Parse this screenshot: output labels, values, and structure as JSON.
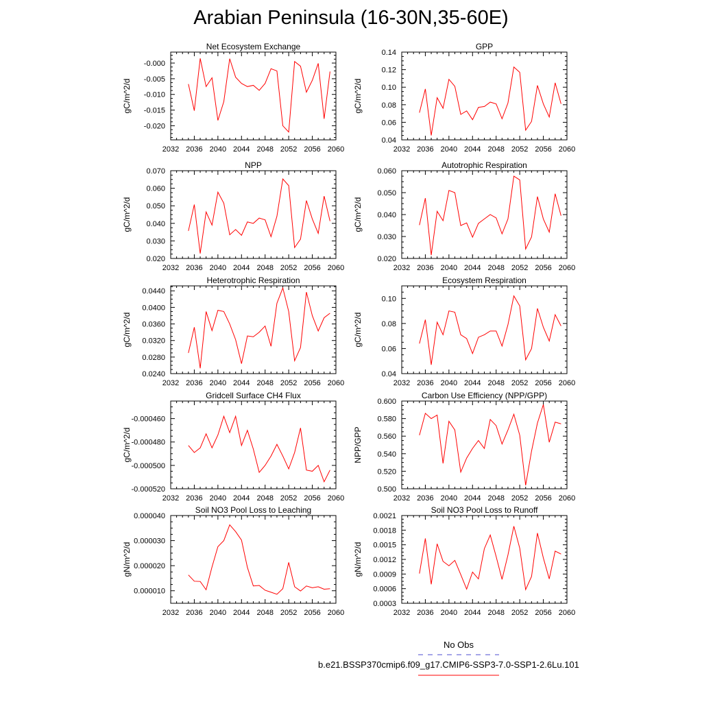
{
  "title": "Arabian Peninsula (16-30N,35-60E)",
  "colors": {
    "series": "#ff0000",
    "obs": "#4b4bd2",
    "axis": "#000000"
  },
  "legend": {
    "obs_label": "No Obs",
    "case_label": "b.e21.BSSP370cmip6.f09_g17.CMIP6-SSP3-7.0-SSP1-2.6Lu.101"
  },
  "chart_data": [
    {
      "type": "line",
      "title": "Net Ecosystem Exchange",
      "ylabel": "gC/m^2/d",
      "xlim": [
        2032,
        2060
      ],
      "xticks": [
        2032,
        2036,
        2040,
        2044,
        2048,
        2052,
        2056,
        2060
      ],
      "xtick_labels": [
        "2032",
        "2036",
        "2040",
        "2044",
        "2048",
        "2052",
        "2056",
        "2060"
      ],
      "ylim": [
        -0.0245,
        0.0035
      ],
      "yticks": [
        -0.02,
        -0.015,
        -0.01,
        -0.005,
        0
      ],
      "ytick_labels": [
        "-0.020",
        "-0.015",
        "-0.010",
        "-0.005",
        "-0.000"
      ],
      "x": [
        2035,
        2036,
        2037,
        2038,
        2039,
        2040,
        2041,
        2042,
        2043,
        2044,
        2045,
        2046,
        2047,
        2048,
        2049,
        2050,
        2051,
        2052,
        2053,
        2054,
        2055,
        2056,
        2057,
        2058,
        2059
      ],
      "values": [
        -0.0067,
        -0.0152,
        0.0015,
        -0.0075,
        -0.0047,
        -0.0183,
        -0.0123,
        0.0014,
        -0.0045,
        -0.0065,
        -0.0075,
        -0.0071,
        -0.0087,
        -0.0065,
        -0.0018,
        -0.0025,
        -0.02,
        -0.022,
        0.0005,
        -0.001,
        -0.0093,
        -0.0055,
        -0.0001,
        -0.0178,
        -0.0027
      ]
    },
    {
      "type": "line",
      "title": "GPP",
      "ylabel": "gC/m^2/d",
      "xlim": [
        2032,
        2060
      ],
      "xticks": [
        2032,
        2036,
        2040,
        2044,
        2048,
        2052,
        2056,
        2060
      ],
      "xtick_labels": [
        "2032",
        "2036",
        "2040",
        "2044",
        "2048",
        "2052",
        "2056",
        "2060"
      ],
      "ylim": [
        0.04,
        0.14
      ],
      "yticks": [
        0.04,
        0.06,
        0.08,
        0.1,
        0.12,
        0.14
      ],
      "ytick_labels": [
        "0.04",
        "0.06",
        "0.08",
        "0.10",
        "0.12",
        "0.14"
      ],
      "x": [
        2035,
        2036,
        2037,
        2038,
        2039,
        2040,
        2041,
        2042,
        2043,
        2044,
        2045,
        2046,
        2047,
        2048,
        2049,
        2050,
        2051,
        2052,
        2053,
        2054,
        2055,
        2056,
        2057,
        2058,
        2059
      ],
      "values": [
        0.071,
        0.098,
        0.045,
        0.088,
        0.076,
        0.109,
        0.101,
        0.069,
        0.073,
        0.063,
        0.077,
        0.078,
        0.083,
        0.081,
        0.064,
        0.082,
        0.123,
        0.117,
        0.051,
        0.061,
        0.102,
        0.081,
        0.066,
        0.105,
        0.081
      ]
    },
    {
      "type": "line",
      "title": "NPP",
      "ylabel": "gC/m^2/d",
      "xlim": [
        2032,
        2060
      ],
      "xticks": [
        2032,
        2036,
        2040,
        2044,
        2048,
        2052,
        2056,
        2060
      ],
      "xtick_labels": [
        "2032",
        "2036",
        "2040",
        "2044",
        "2048",
        "2052",
        "2056",
        "2060"
      ],
      "ylim": [
        0.02,
        0.07
      ],
      "yticks": [
        0.02,
        0.03,
        0.04,
        0.05,
        0.06,
        0.07
      ],
      "ytick_labels": [
        "0.020",
        "0.030",
        "0.040",
        "0.050",
        "0.060",
        "0.070"
      ],
      "x": [
        2035,
        2036,
        2037,
        2038,
        2039,
        2040,
        2041,
        2042,
        2043,
        2044,
        2045,
        2046,
        2047,
        2048,
        2049,
        2050,
        2051,
        2052,
        2053,
        2054,
        2055,
        2056,
        2057,
        2058,
        2059
      ],
      "values": [
        0.0357,
        0.0507,
        0.0228,
        0.0465,
        0.039,
        0.0578,
        0.0515,
        0.0335,
        0.0365,
        0.0332,
        0.0408,
        0.04,
        0.043,
        0.042,
        0.0324,
        0.044,
        0.0653,
        0.0615,
        0.0262,
        0.031,
        0.053,
        0.0425,
        0.0343,
        0.0555,
        0.0413
      ]
    },
    {
      "type": "line",
      "title": "Autotrophic Respiration",
      "ylabel": "gC/m^2/d",
      "xlim": [
        2032,
        2060
      ],
      "xticks": [
        2032,
        2036,
        2040,
        2044,
        2048,
        2052,
        2056,
        2060
      ],
      "xtick_labels": [
        "2032",
        "2036",
        "2040",
        "2044",
        "2048",
        "2052",
        "2056",
        "2060"
      ],
      "ylim": [
        0.02,
        0.06
      ],
      "yticks": [
        0.02,
        0.03,
        0.04,
        0.05,
        0.06
      ],
      "ytick_labels": [
        "0.020",
        "0.030",
        "0.040",
        "0.050",
        "0.060"
      ],
      "x": [
        2035,
        2036,
        2037,
        2038,
        2039,
        2040,
        2041,
        2042,
        2043,
        2044,
        2045,
        2046,
        2047,
        2048,
        2049,
        2050,
        2051,
        2052,
        2053,
        2054,
        2055,
        2056,
        2057,
        2058,
        2059
      ],
      "values": [
        0.0352,
        0.0475,
        0.0215,
        0.0415,
        0.0372,
        0.051,
        0.05,
        0.035,
        0.0362,
        0.0297,
        0.036,
        0.038,
        0.04,
        0.0385,
        0.0312,
        0.038,
        0.0575,
        0.0558,
        0.0243,
        0.0298,
        0.0482,
        0.038,
        0.032,
        0.0495,
        0.0395
      ]
    },
    {
      "type": "line",
      "title": "Heterotrophic Respiration",
      "ylabel": "gC/m^2/d",
      "xlim": [
        2032,
        2060
      ],
      "xticks": [
        2032,
        2036,
        2040,
        2044,
        2048,
        2052,
        2056,
        2060
      ],
      "xtick_labels": [
        "2032",
        "2036",
        "2040",
        "2044",
        "2048",
        "2052",
        "2056",
        "2060"
      ],
      "ylim": [
        0.024,
        0.0452
      ],
      "yticks": [
        0.024,
        0.028,
        0.032,
        0.036,
        0.04,
        0.044
      ],
      "ytick_labels": [
        "0.0240",
        "0.0280",
        "0.0320",
        "0.0360",
        "0.0400",
        "0.0440"
      ],
      "x": [
        2035,
        2036,
        2037,
        2038,
        2039,
        2040,
        2041,
        2042,
        2043,
        2044,
        2045,
        2046,
        2047,
        2048,
        2049,
        2050,
        2051,
        2052,
        2053,
        2054,
        2055,
        2056,
        2057,
        2058,
        2059
      ],
      "values": [
        0.029,
        0.0352,
        0.0253,
        0.039,
        0.0344,
        0.0393,
        0.039,
        0.036,
        0.0322,
        0.0264,
        0.0331,
        0.0329,
        0.034,
        0.0355,
        0.0306,
        0.041,
        0.0447,
        0.039,
        0.0271,
        0.0303,
        0.0437,
        0.038,
        0.0343,
        0.0375,
        0.0386
      ]
    },
    {
      "type": "line",
      "title": "Ecosystem Respiration",
      "ylabel": "gC/m^2/d",
      "xlim": [
        2032,
        2060
      ],
      "xticks": [
        2032,
        2036,
        2040,
        2044,
        2048,
        2052,
        2056,
        2060
      ],
      "xtick_labels": [
        "2032",
        "2036",
        "2040",
        "2044",
        "2048",
        "2052",
        "2056",
        "2060"
      ],
      "ylim": [
        0.04,
        0.11
      ],
      "yticks": [
        0.04,
        0.06,
        0.08,
        0.1
      ],
      "ytick_labels": [
        "0.04",
        "0.06",
        "0.08",
        "0.10"
      ],
      "x": [
        2035,
        2036,
        2037,
        2038,
        2039,
        2040,
        2041,
        2042,
        2043,
        2044,
        2045,
        2046,
        2047,
        2048,
        2049,
        2050,
        2051,
        2052,
        2053,
        2054,
        2055,
        2056,
        2057,
        2058,
        2059
      ],
      "values": [
        0.064,
        0.083,
        0.047,
        0.081,
        0.071,
        0.09,
        0.089,
        0.071,
        0.068,
        0.056,
        0.069,
        0.071,
        0.074,
        0.074,
        0.062,
        0.079,
        0.102,
        0.094,
        0.051,
        0.06,
        0.092,
        0.077,
        0.066,
        0.087,
        0.078
      ]
    },
    {
      "type": "line",
      "title": "Gridcell Surface CH4 Flux",
      "ylabel": "gC/m^2/d",
      "xlim": [
        2032,
        2060
      ],
      "xticks": [
        2032,
        2036,
        2040,
        2044,
        2048,
        2052,
        2056,
        2060
      ],
      "xtick_labels": [
        "2032",
        "2036",
        "2040",
        "2044",
        "2048",
        "2052",
        "2056",
        "2060"
      ],
      "ylim": [
        -0.00052,
        -0.000445
      ],
      "yticks": [
        -0.00052,
        -0.0005,
        -0.00048,
        -0.00046
      ],
      "ytick_labels": [
        "-0.000520",
        "-0.000500",
        "-0.000480",
        "-0.000460"
      ],
      "x": [
        2035,
        2036,
        2037,
        2038,
        2039,
        2040,
        2041,
        2042,
        2043,
        2044,
        2045,
        2046,
        2047,
        2048,
        2049,
        2050,
        2051,
        2052,
        2053,
        2054,
        2055,
        2056,
        2057,
        2058,
        2059
      ],
      "values": [
        -0.000483,
        -0.000489,
        -0.000485,
        -0.000473,
        -0.000485,
        -0.000474,
        -0.000458,
        -0.000472,
        -0.000458,
        -0.000483,
        -0.00047,
        -0.000486,
        -0.000506,
        -0.0005,
        -0.000492,
        -0.000482,
        -0.000492,
        -0.000503,
        -0.000489,
        -0.000468,
        -0.000504,
        -0.000505,
        -0.0005,
        -0.000514,
        -0.000504
      ]
    },
    {
      "type": "line",
      "title": "Carbon Use Efficiency (NPP/GPP)",
      "ylabel": "NPP/GPP",
      "xlim": [
        2032,
        2060
      ],
      "xticks": [
        2032,
        2036,
        2040,
        2044,
        2048,
        2052,
        2056,
        2060
      ],
      "xtick_labels": [
        "2032",
        "2036",
        "2040",
        "2044",
        "2048",
        "2052",
        "2056",
        "2060"
      ],
      "ylim": [
        0.5,
        0.6
      ],
      "yticks": [
        0.5,
        0.52,
        0.54,
        0.56,
        0.58,
        0.6
      ],
      "ytick_labels": [
        "0.500",
        "0.520",
        "0.540",
        "0.560",
        "0.580",
        "0.600"
      ],
      "x": [
        2035,
        2036,
        2037,
        2038,
        2039,
        2040,
        2041,
        2042,
        2043,
        2044,
        2045,
        2046,
        2047,
        2048,
        2049,
        2050,
        2051,
        2052,
        2053,
        2054,
        2055,
        2056,
        2057,
        2058,
        2059
      ],
      "values": [
        0.561,
        0.586,
        0.58,
        0.584,
        0.529,
        0.577,
        0.567,
        0.519,
        0.535,
        0.546,
        0.555,
        0.546,
        0.579,
        0.572,
        0.551,
        0.567,
        0.585,
        0.561,
        0.504,
        0.543,
        0.575,
        0.596,
        0.553,
        0.576,
        0.574
      ]
    },
    {
      "type": "line",
      "title": "Soil NO3 Pool Loss to Leaching",
      "ylabel": "gN/m^2/d",
      "xlim": [
        2032,
        2060
      ],
      "xticks": [
        2032,
        2036,
        2040,
        2044,
        2048,
        2052,
        2056,
        2060
      ],
      "xtick_labels": [
        "2032",
        "2036",
        "2040",
        "2044",
        "2048",
        "2052",
        "2056",
        "2060"
      ],
      "ylim": [
        5e-06,
        4e-05
      ],
      "yticks": [
        1e-05,
        2e-05,
        3e-05,
        4e-05
      ],
      "ytick_labels": [
        "0.000010",
        "0.000020",
        "0.000030",
        "0.000040"
      ],
      "x": [
        2035,
        2036,
        2037,
        2038,
        2039,
        2040,
        2041,
        2042,
        2043,
        2044,
        2045,
        2046,
        2047,
        2048,
        2049,
        2050,
        2051,
        2052,
        2053,
        2054,
        2055,
        2056,
        2057,
        2058,
        2059
      ],
      "values": [
        1.63e-05,
        1.38e-05,
        1.37e-05,
        1.04e-05,
        1.95e-05,
        2.76e-05,
        3e-05,
        3.63e-05,
        3.36e-05,
        3.02e-05,
        1.93e-05,
        1.19e-05,
        1.21e-05,
        1.02e-05,
        9.4e-06,
        8.6e-06,
        1.08e-05,
        2.13e-05,
        1.16e-05,
        9.9e-06,
        1.19e-05,
        1.12e-05,
        1.16e-05,
        1.06e-05,
        1.08e-05
      ]
    },
    {
      "type": "line",
      "title": "Soil NO3 Pool Loss to Runoff",
      "ylabel": "gN/m^2/d",
      "xlim": [
        2032,
        2060
      ],
      "xticks": [
        2032,
        2036,
        2040,
        2044,
        2048,
        2052,
        2056,
        2060
      ],
      "xtick_labels": [
        "2032",
        "2036",
        "2040",
        "2044",
        "2048",
        "2052",
        "2056",
        "2060"
      ],
      "ylim": [
        0.0003,
        0.0021
      ],
      "yticks": [
        0.0003,
        0.0006,
        0.0009,
        0.0012,
        0.0015,
        0.0018,
        0.0021
      ],
      "ytick_labels": [
        "0.0003",
        "0.0006",
        "0.0009",
        "0.0012",
        "0.0015",
        "0.0018",
        "0.0021"
      ],
      "x": [
        2035,
        2036,
        2037,
        2038,
        2039,
        2040,
        2041,
        2042,
        2043,
        2044,
        2045,
        2046,
        2047,
        2048,
        2049,
        2050,
        2051,
        2052,
        2053,
        2054,
        2055,
        2056,
        2057,
        2058,
        2059
      ],
      "values": [
        0.00091,
        0.00163,
        0.00069,
        0.00152,
        0.00116,
        0.00107,
        0.00118,
        0.00089,
        0.00059,
        0.00094,
        0.0008,
        0.00142,
        0.0017,
        0.00126,
        0.00079,
        0.00129,
        0.00188,
        0.00143,
        0.00058,
        0.00085,
        0.00174,
        0.00123,
        0.0008,
        0.00137,
        0.00131
      ]
    }
  ]
}
